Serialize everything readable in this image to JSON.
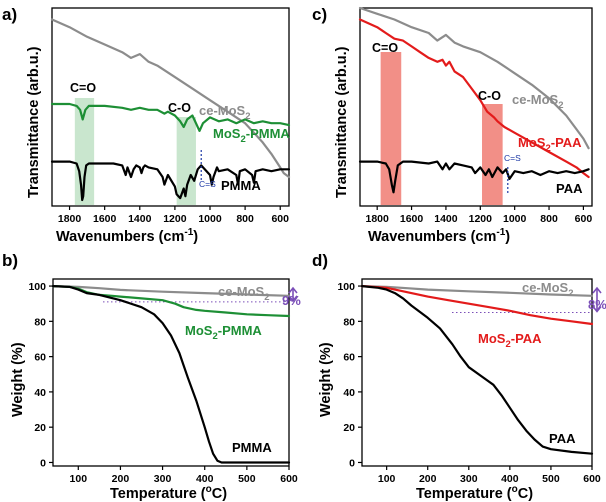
{
  "colors": {
    "ce": "#8c8c8c",
    "pmma_composite": "#1d8f35",
    "paa_composite": "#e31b1b",
    "polymer": "#000000",
    "green_band": "#bfe2c6",
    "red_band": "#f1837a",
    "cs_line": "#1d39a6",
    "percent": "#7b4fb8",
    "ref_dots": "#7b4fb8"
  },
  "chart_data": [
    {
      "panel": "a)",
      "type": "line",
      "xlabel": "Wavenumbers (cm⁻¹)",
      "ylabel": "Transmittance (arb.u.)",
      "xlim": [
        1900,
        550
      ],
      "x_ticks": [
        1800,
        1600,
        1400,
        1200,
        1000,
        800,
        600
      ],
      "bands": [
        {
          "label": "C=O",
          "from": 1770,
          "to": 1660,
          "color": "green_band"
        },
        {
          "label": "C-O",
          "from": 1190,
          "to": 1080,
          "color": "green_band"
        }
      ],
      "marker": {
        "label": "C=S",
        "x": 1050
      },
      "series": [
        {
          "name": "ce-MoS₂",
          "color": "ce",
          "x": [
            1900,
            1800,
            1700,
            1600,
            1500,
            1450,
            1400,
            1350,
            1300,
            1200,
            1100,
            1000,
            900,
            800,
            700,
            650,
            600,
            580,
            550
          ],
          "y": [
            0.94,
            0.9,
            0.85,
            0.81,
            0.77,
            0.74,
            0.76,
            0.72,
            0.7,
            0.64,
            0.58,
            0.52,
            0.46,
            0.4,
            0.3,
            0.24,
            0.17,
            0.14,
            0.12
          ]
        },
        {
          "name": "MoS₂-PMMA",
          "color": "pmma_composite",
          "x": [
            1900,
            1800,
            1760,
            1740,
            1725,
            1710,
            1690,
            1650,
            1600,
            1500,
            1450,
            1400,
            1350,
            1300,
            1260,
            1240,
            1200,
            1170,
            1150,
            1130,
            1100,
            1060,
            1040,
            1000,
            950,
            900,
            850,
            800,
            750,
            700,
            650,
            600,
            550
          ],
          "y": [
            0.5,
            0.5,
            0.49,
            0.47,
            0.42,
            0.47,
            0.49,
            0.49,
            0.49,
            0.48,
            0.47,
            0.48,
            0.47,
            0.47,
            0.45,
            0.46,
            0.44,
            0.41,
            0.38,
            0.42,
            0.44,
            0.36,
            0.4,
            0.43,
            0.41,
            0.42,
            0.4,
            0.42,
            0.4,
            0.41,
            0.4,
            0.4,
            0.39
          ]
        },
        {
          "name": "PMMA",
          "color": "polymer",
          "x": [
            1900,
            1800,
            1760,
            1745,
            1735,
            1728,
            1722,
            1715,
            1705,
            1690,
            1650,
            1600,
            1550,
            1500,
            1480,
            1470,
            1450,
            1435,
            1420,
            1400,
            1390,
            1380,
            1370,
            1350,
            1300,
            1270,
            1260,
            1240,
            1200,
            1190,
            1170,
            1150,
            1140,
            1130,
            1110,
            1090,
            1070,
            1050,
            1000,
            990,
            980,
            960,
            950,
            900,
            850,
            840,
            830,
            800,
            760,
            750,
            740,
            700,
            650,
            600,
            550
          ],
          "y": [
            0.2,
            0.2,
            0.19,
            0.15,
            0.08,
            0.0,
            0.02,
            0.12,
            0.18,
            0.19,
            0.19,
            0.19,
            0.19,
            0.18,
            0.13,
            0.17,
            0.12,
            0.16,
            0.18,
            0.17,
            0.14,
            0.17,
            0.18,
            0.17,
            0.16,
            0.12,
            0.08,
            0.13,
            0.07,
            0.03,
            0.01,
            0.06,
            0.02,
            0.08,
            0.13,
            0.1,
            0.16,
            0.18,
            0.13,
            0.08,
            0.12,
            0.17,
            0.15,
            0.16,
            0.13,
            0.08,
            0.15,
            0.16,
            0.13,
            0.09,
            0.15,
            0.16,
            0.15,
            0.16,
            0.16
          ]
        }
      ]
    },
    {
      "panel": "c)",
      "type": "line",
      "xlabel": "Wavenumbers (cm⁻¹)",
      "ylabel": "Transmittance (arb.u.)",
      "xlim": [
        1900,
        550
      ],
      "x_ticks": [
        1800,
        1600,
        1400,
        1200,
        1000,
        800,
        600
      ],
      "bands": [
        {
          "label": "C=O",
          "from": 1780,
          "to": 1660,
          "color": "red_band"
        },
        {
          "label": "C-O",
          "from": 1190,
          "to": 1070,
          "color": "red_band"
        }
      ],
      "marker": {
        "label": "C=S",
        "x": 1040
      },
      "series": [
        {
          "name": "ce-MoS₂",
          "color": "ce",
          "x": [
            1900,
            1800,
            1700,
            1600,
            1500,
            1450,
            1400,
            1350,
            1300,
            1200,
            1100,
            1000,
            900,
            800,
            700,
            650,
            600,
            570
          ],
          "y": [
            1.0,
            0.97,
            0.94,
            0.9,
            0.87,
            0.83,
            0.86,
            0.82,
            0.8,
            0.77,
            0.72,
            0.66,
            0.6,
            0.53,
            0.44,
            0.38,
            0.32,
            0.27
          ]
        },
        {
          "name": "MoS₂-PAA",
          "color": "paa_composite",
          "x": [
            1900,
            1800,
            1750,
            1700,
            1650,
            1600,
            1550,
            1500,
            1450,
            1420,
            1400,
            1380,
            1350,
            1300,
            1250,
            1200,
            1160,
            1120,
            1100,
            1060,
            1000,
            900,
            800,
            700,
            640,
            600,
            570
          ],
          "y": [
            0.94,
            0.9,
            0.87,
            0.84,
            0.83,
            0.8,
            0.77,
            0.74,
            0.72,
            0.73,
            0.7,
            0.72,
            0.67,
            0.64,
            0.58,
            0.52,
            0.46,
            0.43,
            0.41,
            0.38,
            0.35,
            0.3,
            0.25,
            0.2,
            0.17,
            0.14,
            0.12
          ]
        },
        {
          "name": "PAA",
          "color": "polymer",
          "x": [
            1900,
            1800,
            1750,
            1730,
            1715,
            1705,
            1695,
            1680,
            1650,
            1600,
            1500,
            1450,
            1420,
            1400,
            1380,
            1350,
            1300,
            1250,
            1230,
            1200,
            1170,
            1150,
            1130,
            1100,
            1070,
            1050,
            1030,
            1000,
            950,
            900,
            850,
            800,
            750,
            700,
            650,
            600,
            570
          ],
          "y": [
            0.2,
            0.2,
            0.19,
            0.16,
            0.08,
            0.04,
            0.1,
            0.18,
            0.2,
            0.2,
            0.19,
            0.2,
            0.16,
            0.19,
            0.16,
            0.19,
            0.18,
            0.17,
            0.14,
            0.17,
            0.13,
            0.16,
            0.12,
            0.17,
            0.14,
            0.16,
            0.11,
            0.15,
            0.14,
            0.15,
            0.13,
            0.15,
            0.14,
            0.15,
            0.14,
            0.15,
            0.16
          ]
        }
      ]
    },
    {
      "panel": "b)",
      "type": "line",
      "xlabel": "Temperature (°C)",
      "ylabel": "Weight (%)",
      "xlim": [
        40,
        600
      ],
      "ylim": [
        -2,
        104
      ],
      "x_ticks": [
        100,
        200,
        300,
        400,
        500,
        600
      ],
      "y_ticks": [
        0,
        20,
        40,
        60,
        80,
        100
      ],
      "reference_level": 91,
      "percent_label": "9%",
      "series": [
        {
          "name": "ce-MoS₂",
          "color": "ce",
          "x": [
            40,
            100,
            150,
            200,
            300,
            400,
            500,
            600
          ],
          "y": [
            100,
            99.5,
            98.8,
            97.8,
            96.8,
            96.0,
            95.2,
            94.5
          ]
        },
        {
          "name": "MoS₂-PMMA",
          "color": "pmma_composite",
          "x": [
            40,
            80,
            100,
            120,
            150,
            180,
            200,
            250,
            300,
            330,
            350,
            380,
            400,
            450,
            500,
            550,
            600
          ],
          "y": [
            100,
            99.5,
            98.5,
            96.5,
            95.0,
            94.5,
            94.0,
            93.0,
            92.0,
            90.0,
            88.0,
            86.5,
            86.0,
            85.0,
            84.0,
            83.5,
            83.0
          ]
        },
        {
          "name": "PMMA",
          "color": "polymer",
          "x": [
            40,
            80,
            100,
            120,
            150,
            200,
            250,
            280,
            300,
            320,
            340,
            350,
            360,
            380,
            400,
            410,
            420,
            430,
            440,
            450,
            600
          ],
          "y": [
            100,
            99.5,
            98.0,
            96.0,
            95.0,
            92.0,
            88.0,
            84.0,
            79.0,
            72.0,
            62.0,
            55.0,
            48.0,
            35.0,
            20.0,
            12.0,
            5.0,
            1.0,
            0.0,
            0.0,
            0.0
          ]
        }
      ]
    },
    {
      "panel": "d)",
      "type": "line",
      "xlabel": "Temperature (°C)",
      "ylabel": "Weight (%)",
      "xlim": [
        40,
        600
      ],
      "ylim": [
        -2,
        104
      ],
      "x_ticks": [
        100,
        200,
        300,
        400,
        500,
        600
      ],
      "y_ticks": [
        0,
        20,
        40,
        60,
        80,
        100
      ],
      "reference_level": 85,
      "percent_label": "8%",
      "series": [
        {
          "name": "ce-MoS₂",
          "color": "ce",
          "x": [
            40,
            100,
            150,
            200,
            300,
            400,
            500,
            600
          ],
          "y": [
            100,
            99.5,
            98.8,
            98.0,
            97.0,
            96.2,
            95.2,
            94.5
          ]
        },
        {
          "name": "MoS₂-PAA",
          "color": "paa_composite",
          "x": [
            40,
            100,
            120,
            150,
            200,
            250,
            300,
            350,
            400,
            450,
            500,
            550,
            600
          ],
          "y": [
            100,
            99.0,
            98.0,
            96.5,
            94.0,
            92.0,
            90.0,
            88.0,
            86.0,
            83.5,
            81.5,
            80.0,
            78.5
          ]
        },
        {
          "name": "PAA",
          "color": "polymer",
          "x": [
            40,
            80,
            100,
            120,
            140,
            160,
            200,
            230,
            260,
            280,
            300,
            330,
            360,
            380,
            400,
            420,
            440,
            460,
            480,
            500,
            550,
            600
          ],
          "y": [
            100,
            99.0,
            98.0,
            96.0,
            93.0,
            89.0,
            82.0,
            76.0,
            67.0,
            60.0,
            54.0,
            49.0,
            44.0,
            38.0,
            31.0,
            24.0,
            18.0,
            13.0,
            9.0,
            7.5,
            6.0,
            5.0
          ]
        }
      ]
    }
  ],
  "labels": {
    "panel_a": "a)",
    "panel_b": "b)",
    "panel_c": "c)",
    "panel_d": "d)",
    "ftir_xlabel": "Wavenumbers (cm",
    "ftir_xlabel_exp": "-1",
    "ftir_xlabel_close": ")",
    "ftir_ylabel": "Transmittance (arb.u.)",
    "tga_xlabel": "Temperature (",
    "tga_xlabel_deg": "o",
    "tga_xlabel_close": "C)",
    "tga_ylabel": "Weight (%)",
    "co_label": "C=O",
    "c_o_label": "C-O",
    "cs_label": "C=S",
    "ce_main": "ce-MoS",
    "sub2": "2",
    "mos": "MoS",
    "pmma_suffix": "-PMMA",
    "paa_suffix": "-PAA",
    "pmma": "PMMA",
    "paa": "PAA",
    "pct_b": "9%",
    "pct_d": "8%"
  },
  "ticks": {
    "ftir_x": [
      "1800",
      "1600",
      "1400",
      "1200",
      "1000",
      "800",
      "600"
    ],
    "tga_x": [
      "100",
      "200",
      "300",
      "400",
      "500",
      "600"
    ],
    "tga_y": [
      "0",
      "20",
      "40",
      "60",
      "80",
      "100"
    ]
  }
}
